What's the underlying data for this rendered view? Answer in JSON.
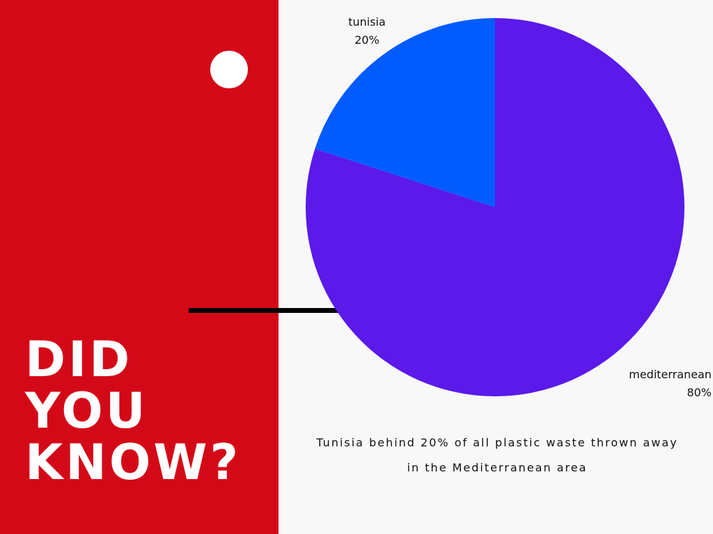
{
  "headline": {
    "line1": "DID",
    "line2": "YOU",
    "line3": "KNOW?"
  },
  "colors": {
    "panel": "#d40918",
    "background": "#f8f8f8",
    "tunisia": "#005cff",
    "mediterranean": "#5b19ea"
  },
  "chart_data": {
    "type": "pie",
    "slices": [
      {
        "label": "tunisia",
        "value": 20,
        "value_label": "20%",
        "color": "#005cff"
      },
      {
        "label": "mediterranean",
        "value": 80,
        "value_label": "80%",
        "color": "#5b19ea"
      }
    ],
    "legend": "none"
  },
  "caption": {
    "line1": "Tunisia behind 20% of all plastic waste thrown away",
    "line2": "in the Mediterranean area"
  }
}
